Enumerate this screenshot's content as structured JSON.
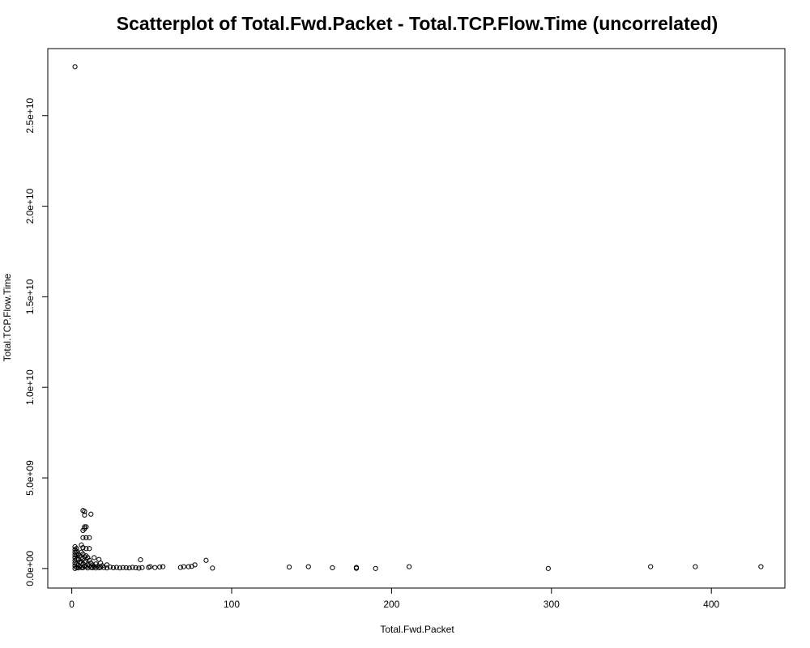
{
  "chart_data": {
    "type": "scatter",
    "title": "Scatterplot of Total.Fwd.Packet - Total.TCP.Flow.Time (uncorrelated)",
    "xlabel": "Total.Fwd.Packet",
    "ylabel": "Total.TCP.Flow.Time",
    "xlim": [
      -15,
      446
    ],
    "ylim": [
      -1080000000.0,
      28700000000.0
    ],
    "x_ticks": [
      0,
      100,
      200,
      300,
      400
    ],
    "x_tick_labels": [
      "0",
      "100",
      "200",
      "300",
      "400"
    ],
    "y_ticks": [
      0,
      5000000000.0,
      10000000000.0,
      15000000000.0,
      20000000000.0,
      25000000000.0
    ],
    "y_tick_labels": [
      "0.0e+00",
      "5.0e+09",
      "1.0e+10",
      "1.5e+10",
      "2.0e+10",
      "2.5e+10"
    ],
    "grid": false,
    "legend": "none",
    "marker": "open-circle",
    "point_color": "#000000",
    "series": [
      {
        "points": [
          {
            "x": 2,
            "y": 27700000000.0
          },
          {
            "x": 7,
            "y": 3200000000.0
          },
          {
            "x": 8,
            "y": 3150000000.0
          },
          {
            "x": 8,
            "y": 2950000000.0
          },
          {
            "x": 12,
            "y": 3000000000.0
          },
          {
            "x": 8,
            "y": 2300000000.0
          },
          {
            "x": 9,
            "y": 2300000000.0
          },
          {
            "x": 7,
            "y": 2100000000.0
          },
          {
            "x": 8,
            "y": 2200000000.0
          },
          {
            "x": 7,
            "y": 1700000000.0
          },
          {
            "x": 9,
            "y": 1700000000.0
          },
          {
            "x": 11,
            "y": 1700000000.0
          },
          {
            "x": 6,
            "y": 1300000000.0
          },
          {
            "x": 7,
            "y": 1150000000.0
          },
          {
            "x": 9,
            "y": 1100000000.0
          },
          {
            "x": 11,
            "y": 1100000000.0
          },
          {
            "x": 2,
            "y": 1200000000.0
          },
          {
            "x": 2,
            "y": 1050000000.0
          },
          {
            "x": 2,
            "y": 900000000.0
          },
          {
            "x": 2,
            "y": 750000000.0
          },
          {
            "x": 2,
            "y": 600000000.0
          },
          {
            "x": 2,
            "y": 450000000.0
          },
          {
            "x": 2,
            "y": 300000000.0
          },
          {
            "x": 2,
            "y": 150000000.0
          },
          {
            "x": 2,
            "y": 0
          },
          {
            "x": 3,
            "y": 1100000000.0
          },
          {
            "x": 3,
            "y": 950000000.0
          },
          {
            "x": 3,
            "y": 750000000.0
          },
          {
            "x": 3,
            "y": 500000000.0
          },
          {
            "x": 3,
            "y": 250000000.0
          },
          {
            "x": 3,
            "y": 50000000.0
          },
          {
            "x": 4,
            "y": 800000000.0
          },
          {
            "x": 4,
            "y": 500000000.0
          },
          {
            "x": 4,
            "y": 200000000.0
          },
          {
            "x": 4,
            "y": 30000000.0
          },
          {
            "x": 5,
            "y": 700000000.0
          },
          {
            "x": 5,
            "y": 350000000.0
          },
          {
            "x": 5,
            "y": 100000000.0
          },
          {
            "x": 6,
            "y": 900000000.0
          },
          {
            "x": 6,
            "y": 600000000.0
          },
          {
            "x": 6,
            "y": 300000000.0
          },
          {
            "x": 6,
            "y": 50000000.0
          },
          {
            "x": 7,
            "y": 800000000.0
          },
          {
            "x": 7,
            "y": 550000000.0
          },
          {
            "x": 7,
            "y": 250000000.0
          },
          {
            "x": 7,
            "y": 40000000.0
          },
          {
            "x": 8,
            "y": 650000000.0
          },
          {
            "x": 8,
            "y": 350000000.0
          },
          {
            "x": 8,
            "y": 120000000.0
          },
          {
            "x": 9,
            "y": 700000000.0
          },
          {
            "x": 9,
            "y": 400000000.0
          },
          {
            "x": 9,
            "y": 100000000.0
          },
          {
            "x": 10,
            "y": 600000000.0
          },
          {
            "x": 10,
            "y": 200000000.0
          },
          {
            "x": 10,
            "y": 30000000.0
          },
          {
            "x": 11,
            "y": 450000000.0
          },
          {
            "x": 11,
            "y": 150000000.0
          },
          {
            "x": 12,
            "y": 300000000.0
          },
          {
            "x": 12,
            "y": 60000000.0
          },
          {
            "x": 13,
            "y": 200000000.0
          },
          {
            "x": 13,
            "y": 40000000.0
          },
          {
            "x": 14,
            "y": 600000000.0
          },
          {
            "x": 14,
            "y": 100000000.0
          },
          {
            "x": 15,
            "y": 250000000.0
          },
          {
            "x": 15,
            "y": 30000000.0
          },
          {
            "x": 16,
            "y": 120000000.0
          },
          {
            "x": 17,
            "y": 500000000.0
          },
          {
            "x": 17,
            "y": 40000000.0
          },
          {
            "x": 18,
            "y": 300000000.0
          },
          {
            "x": 18,
            "y": 60000000.0
          },
          {
            "x": 19,
            "y": 150000000.0
          },
          {
            "x": 20,
            "y": 50000000.0
          },
          {
            "x": 22,
            "y": 200000000.0
          },
          {
            "x": 22,
            "y": 30000000.0
          },
          {
            "x": 24,
            "y": 80000000.0
          },
          {
            "x": 26,
            "y": 40000000.0
          },
          {
            "x": 28,
            "y": 60000000.0
          },
          {
            "x": 30,
            "y": 30000000.0
          },
          {
            "x": 32,
            "y": 50000000.0
          },
          {
            "x": 34,
            "y": 40000000.0
          },
          {
            "x": 36,
            "y": 30000000.0
          },
          {
            "x": 38,
            "y": 60000000.0
          },
          {
            "x": 40,
            "y": 40000000.0
          },
          {
            "x": 42,
            "y": 20000000.0
          },
          {
            "x": 43,
            "y": 480000000.0
          },
          {
            "x": 44,
            "y": 50000000.0
          },
          {
            "x": 48,
            "y": 60000000.0
          },
          {
            "x": 49,
            "y": 100000000.0
          },
          {
            "x": 52,
            "y": 50000000.0
          },
          {
            "x": 55,
            "y": 80000000.0
          },
          {
            "x": 57,
            "y": 100000000.0
          },
          {
            "x": 68,
            "y": 60000000.0
          },
          {
            "x": 70,
            "y": 100000000.0
          },
          {
            "x": 73,
            "y": 100000000.0
          },
          {
            "x": 75,
            "y": 120000000.0
          },
          {
            "x": 77,
            "y": 200000000.0
          },
          {
            "x": 84,
            "y": 450000000.0
          },
          {
            "x": 88,
            "y": 20000000.0
          },
          {
            "x": 136,
            "y": 80000000.0
          },
          {
            "x": 148,
            "y": 100000000.0
          },
          {
            "x": 163,
            "y": 40000000.0
          },
          {
            "x": 178,
            "y": 60000000.0
          },
          {
            "x": 178,
            "y": 10000000.0
          },
          {
            "x": 190,
            "y": 0
          },
          {
            "x": 211,
            "y": 100000000.0
          },
          {
            "x": 298,
            "y": 0
          },
          {
            "x": 362,
            "y": 100000000.0
          },
          {
            "x": 390,
            "y": 100000000.0
          },
          {
            "x": 431,
            "y": 100000000.0
          }
        ]
      }
    ]
  }
}
